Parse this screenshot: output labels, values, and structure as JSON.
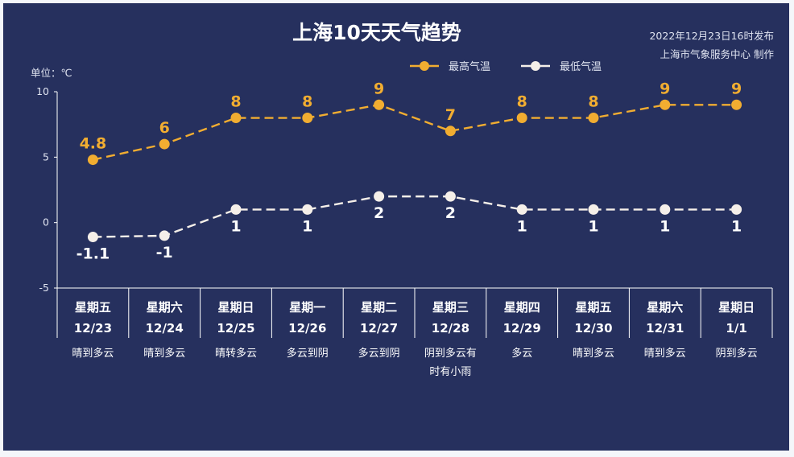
{
  "chart_data": {
    "type": "line",
    "title": "上海10天天气趋势",
    "meta": {
      "issued": "2022年12月23日16时发布",
      "producer": "上海市气象服务中心 制作"
    },
    "ylabel": "单位：℃",
    "ylim": [
      -5,
      10
    ],
    "yticks": [
      10,
      5,
      0,
      -5
    ],
    "legend_position": "top-right",
    "categories": [
      {
        "day": "星期五",
        "date": "12/23",
        "weather": [
          "晴到多云"
        ]
      },
      {
        "day": "星期六",
        "date": "12/24",
        "weather": [
          "晴到多云"
        ]
      },
      {
        "day": "星期日",
        "date": "12/25",
        "weather": [
          "晴转多云"
        ]
      },
      {
        "day": "星期一",
        "date": "12/26",
        "weather": [
          "多云到阴"
        ]
      },
      {
        "day": "星期二",
        "date": "12/27",
        "weather": [
          "多云到阴"
        ]
      },
      {
        "day": "星期三",
        "date": "12/28",
        "weather": [
          "阴到多云有",
          "时有小雨"
        ]
      },
      {
        "day": "星期四",
        "date": "12/29",
        "weather": [
          "多云"
        ]
      },
      {
        "day": "星期五",
        "date": "12/30",
        "weather": [
          "晴到多云"
        ]
      },
      {
        "day": "星期六",
        "date": "12/31",
        "weather": [
          "晴到多云"
        ]
      },
      {
        "day": "星期日",
        "date": "1/1",
        "weather": [
          "阴到多云"
        ]
      }
    ],
    "series": [
      {
        "name": "最高气温",
        "color": "#f1ad31",
        "values": [
          4.8,
          6,
          8,
          8,
          9,
          7,
          8,
          8,
          9,
          9
        ],
        "labels": [
          "4.8",
          "6",
          "8",
          "8",
          "9",
          "7",
          "8",
          "8",
          "9",
          "9"
        ]
      },
      {
        "name": "最低气温",
        "color": "#f5efe9",
        "values": [
          -1.1,
          -1,
          1,
          1,
          2,
          2,
          1,
          1,
          1,
          1
        ],
        "labels": [
          "-1.1",
          "-1",
          "1",
          "1",
          "2",
          "2",
          "1",
          "1",
          "1",
          "1"
        ]
      }
    ]
  }
}
